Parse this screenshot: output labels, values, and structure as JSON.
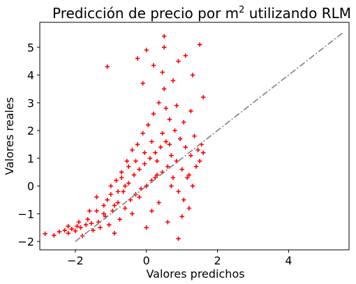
{
  "chart_data": {
    "type": "scatter",
    "title": "Predicción de precio por m",
    "title_superscript": "2",
    "title_suffix": " utilizando RLM",
    "xlabel": "Valores predichos",
    "ylabel": "Valores reales",
    "xlim": [
      -3.0,
      5.7
    ],
    "ylim": [
      -2.3,
      5.9
    ],
    "xticks": [
      -2,
      0,
      2,
      4
    ],
    "xtick_labels": [
      "−2",
      "0",
      "2",
      "4"
    ],
    "yticks": [
      -2,
      -1,
      0,
      1,
      2,
      3,
      4,
      5
    ],
    "ytick_labels": [
      "−2",
      "−1",
      "0",
      "1",
      "2",
      "3",
      "4",
      "5"
    ],
    "marker": "+",
    "marker_color": "#ff0000",
    "reference_line": {
      "style": "dashdot",
      "color": "#808080",
      "x": [
        -2.0,
        5.55
      ],
      "y": [
        -2.0,
        5.55
      ]
    },
    "grid": false,
    "points": [
      [
        -2.85,
        -1.72
      ],
      [
        -2.6,
        -1.78
      ],
      [
        -2.45,
        -1.65
      ],
      [
        -2.3,
        -1.6
      ],
      [
        -2.2,
        -1.7
      ],
      [
        -2.1,
        -1.55
      ],
      [
        -2.0,
        -1.62
      ],
      [
        -1.95,
        -1.45
      ],
      [
        -1.85,
        -1.5
      ],
      [
        -1.8,
        -1.8
      ],
      [
        -1.7,
        -1.4
      ],
      [
        -1.65,
        -1.2
      ],
      [
        -1.55,
        -1.35
      ],
      [
        -1.5,
        -1.6
      ],
      [
        -1.4,
        -0.9
      ],
      [
        -1.35,
        -1.3
      ],
      [
        -1.3,
        -1.5
      ],
      [
        -1.2,
        -0.7
      ],
      [
        -1.15,
        -1.1
      ],
      [
        -1.1,
        -0.5
      ],
      [
        -1.05,
        -1.4
      ],
      [
        -1.0,
        -0.3
      ],
      [
        -0.95,
        -0.9
      ],
      [
        -0.9,
        -1.7
      ],
      [
        -0.85,
        0.2
      ],
      [
        -0.8,
        -0.6
      ],
      [
        -0.75,
        -1.2
      ],
      [
        -0.7,
        0.5
      ],
      [
        -0.65,
        -0.2
      ],
      [
        -0.6,
        -0.8
      ],
      [
        -0.55,
        0.9
      ],
      [
        -0.5,
        0.1
      ],
      [
        -0.45,
        -0.5
      ],
      [
        -0.4,
        1.3
      ],
      [
        -0.35,
        0.4
      ],
      [
        -0.3,
        -0.3
      ],
      [
        -0.25,
        1.5
      ],
      [
        -0.2,
        0.6
      ],
      [
        -0.15,
        -0.1
      ],
      [
        -0.1,
        1.9
      ],
      [
        -0.05,
        0.8
      ],
      [
        0.0,
        0.0
      ],
      [
        0.05,
        2.2
      ],
      [
        0.1,
        1.0
      ],
      [
        0.15,
        0.2
      ],
      [
        0.2,
        2.6
      ],
      [
        0.25,
        1.2
      ],
      [
        0.3,
        0.4
      ],
      [
        0.35,
        3.0
      ],
      [
        0.4,
        1.4
      ],
      [
        0.45,
        0.5
      ],
      [
        0.5,
        3.5
      ],
      [
        0.55,
        1.6
      ],
      [
        0.6,
        0.7
      ],
      [
        0.65,
        2.4
      ],
      [
        0.7,
        1.1
      ],
      [
        0.75,
        0.3
      ],
      [
        0.8,
        2.0
      ],
      [
        0.85,
        0.9
      ],
      [
        0.9,
        -0.2
      ],
      [
        0.95,
        1.7
      ],
      [
        1.0,
        0.6
      ],
      [
        1.05,
        -0.5
      ],
      [
        1.1,
        1.4
      ],
      [
        1.15,
        0.3
      ],
      [
        1.2,
        -0.8
      ],
      [
        1.25,
        1.1
      ],
      [
        1.3,
        0.0
      ],
      [
        1.35,
        1.8
      ],
      [
        1.4,
        0.7
      ],
      [
        1.45,
        1.3
      ],
      [
        1.5,
        0.9
      ],
      [
        1.55,
        1.5
      ],
      [
        1.6,
        1.2
      ],
      [
        -0.25,
        4.6
      ],
      [
        0.0,
        4.9
      ],
      [
        0.5,
        5.4
      ],
      [
        0.5,
        5.0
      ],
      [
        0.9,
        4.5
      ],
      [
        1.3,
        4.0
      ],
      [
        1.5,
        5.1
      ],
      [
        -1.1,
        4.3
      ],
      [
        0.2,
        4.35
      ],
      [
        0.45,
        4.1
      ],
      [
        1.1,
        4.7
      ],
      [
        0.75,
        3.8
      ],
      [
        1.6,
        3.2
      ],
      [
        -0.1,
        3.7
      ],
      [
        0.3,
        0.9
      ],
      [
        -0.6,
        0.0
      ],
      [
        -0.2,
        -0.4
      ],
      [
        0.15,
        -0.9
      ],
      [
        0.6,
        -1.3
      ],
      [
        0.9,
        -1.9
      ],
      [
        -0.4,
        -1.0
      ],
      [
        -0.8,
        -0.2
      ],
      [
        0.0,
        -1.5
      ],
      [
        0.35,
        -0.6
      ],
      [
        1.0,
        -1.1
      ],
      [
        1.2,
        0.4
      ],
      [
        0.7,
        0.0
      ],
      [
        -0.5,
        0.7
      ],
      [
        -0.9,
        -0.7
      ],
      [
        -1.2,
        -1.0
      ],
      [
        -1.4,
        -0.4
      ],
      [
        -1.6,
        -0.9
      ],
      [
        -1.9,
        -1.3
      ],
      [
        -2.2,
        -1.45
      ],
      [
        0.25,
        0.3
      ],
      [
        0.45,
        1.9
      ],
      [
        0.65,
        1.5
      ],
      [
        0.85,
        2.9
      ],
      [
        1.05,
        2.3
      ],
      [
        1.25,
        2.7
      ],
      [
        0.55,
        2.8
      ],
      [
        0.15,
        1.6
      ],
      [
        -0.05,
        1.2
      ],
      [
        -0.3,
        0.9
      ],
      [
        -0.7,
        0.3
      ],
      [
        -1.0,
        0.0
      ]
    ]
  }
}
